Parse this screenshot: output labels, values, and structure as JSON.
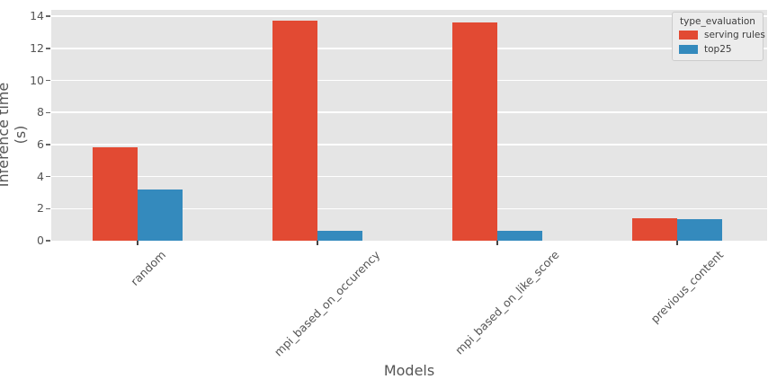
{
  "chart_data": {
    "type": "bar",
    "title": "",
    "xlabel": "Models",
    "ylabel": "Inference time (s)",
    "categories": [
      "random",
      "mpi_based_on_occurency",
      "mpi_based_on_like_score",
      "previous_content"
    ],
    "series": [
      {
        "name": "serving rules",
        "color": "#E24A33",
        "values": [
          5.85,
          13.75,
          13.6,
          1.4
        ]
      },
      {
        "name": "top25",
        "color": "#348ABD",
        "values": [
          3.2,
          0.63,
          0.63,
          1.32
        ]
      }
    ],
    "ylim": [
      0,
      14.4
    ],
    "yticks": [
      0,
      2,
      4,
      6,
      8,
      10,
      12,
      14
    ],
    "grid": "horizontal-white",
    "legend": {
      "title": "type_evaluation",
      "position": "upper-right"
    },
    "xtick_rotation_deg": 45
  },
  "colors": {
    "figure_bg": "#FFFFFF",
    "plot_bg": "#E5E5E5",
    "grid": "#FFFFFF",
    "text": "#555555",
    "legend_bg": "#ECECEC",
    "legend_border": "#CCCCCC"
  }
}
